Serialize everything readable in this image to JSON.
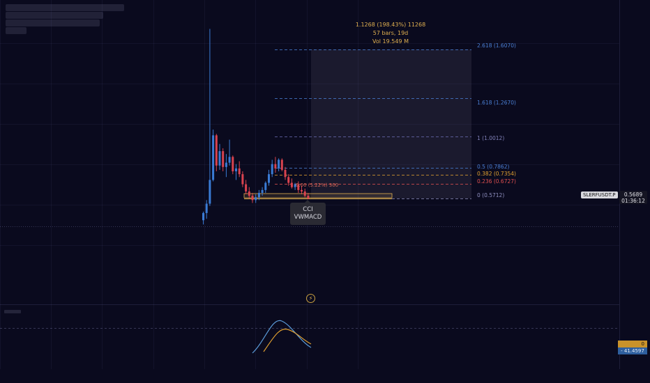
{
  "chart_data": {
    "type": "candlestick",
    "symbol": "SLERFUSDT.P",
    "last_price": "0.5689",
    "countdown": "01:36:12",
    "candles": [
      {
        "o": 0.42,
        "h": 0.48,
        "l": 0.39,
        "c": 0.47
      },
      {
        "o": 0.47,
        "h": 0.56,
        "l": 0.43,
        "c": 0.535
      },
      {
        "o": 0.535,
        "h": 1.75,
        "l": 0.52,
        "c": 0.7
      },
      {
        "o": 0.7,
        "h": 1.05,
        "l": 0.69,
        "c": 1.01
      },
      {
        "o": 1.01,
        "h": 1.02,
        "l": 0.76,
        "c": 0.8
      },
      {
        "o": 0.8,
        "h": 0.95,
        "l": 0.77,
        "c": 0.9
      },
      {
        "o": 0.9,
        "h": 0.92,
        "l": 0.76,
        "c": 0.79
      },
      {
        "o": 0.79,
        "h": 0.88,
        "l": 0.72,
        "c": 0.82
      },
      {
        "o": 0.82,
        "h": 0.98,
        "l": 0.8,
        "c": 0.86
      },
      {
        "o": 0.86,
        "h": 0.87,
        "l": 0.74,
        "c": 0.76
      },
      {
        "o": 0.76,
        "h": 0.81,
        "l": 0.7,
        "c": 0.78
      },
      {
        "o": 0.78,
        "h": 0.83,
        "l": 0.72,
        "c": 0.74
      },
      {
        "o": 0.74,
        "h": 0.76,
        "l": 0.65,
        "c": 0.67
      },
      {
        "o": 0.67,
        "h": 0.7,
        "l": 0.6,
        "c": 0.62
      },
      {
        "o": 0.62,
        "h": 0.65,
        "l": 0.57,
        "c": 0.59
      },
      {
        "o": 0.59,
        "h": 0.61,
        "l": 0.54,
        "c": 0.56
      },
      {
        "o": 0.56,
        "h": 0.6,
        "l": 0.54,
        "c": 0.58
      },
      {
        "o": 0.58,
        "h": 0.63,
        "l": 0.56,
        "c": 0.61
      },
      {
        "o": 0.61,
        "h": 0.65,
        "l": 0.59,
        "c": 0.63
      },
      {
        "o": 0.63,
        "h": 0.69,
        "l": 0.61,
        "c": 0.68
      },
      {
        "o": 0.68,
        "h": 0.77,
        "l": 0.66,
        "c": 0.74
      },
      {
        "o": 0.74,
        "h": 0.84,
        "l": 0.72,
        "c": 0.81
      },
      {
        "o": 0.81,
        "h": 0.86,
        "l": 0.75,
        "c": 0.78
      },
      {
        "o": 0.78,
        "h": 0.85,
        "l": 0.76,
        "c": 0.84
      },
      {
        "o": 0.84,
        "h": 0.85,
        "l": 0.76,
        "c": 0.77
      },
      {
        "o": 0.77,
        "h": 0.79,
        "l": 0.7,
        "c": 0.72
      },
      {
        "o": 0.72,
        "h": 0.74,
        "l": 0.66,
        "c": 0.68
      },
      {
        "o": 0.68,
        "h": 0.71,
        "l": 0.64,
        "c": 0.65
      },
      {
        "o": 0.65,
        "h": 0.68,
        "l": 0.63,
        "c": 0.67
      },
      {
        "o": 0.67,
        "h": 0.69,
        "l": 0.61,
        "c": 0.63
      },
      {
        "o": 0.63,
        "h": 0.66,
        "l": 0.6,
        "c": 0.62
      },
      {
        "o": 0.62,
        "h": 0.64,
        "l": 0.58,
        "c": 0.59
      },
      {
        "o": 0.59,
        "h": 0.61,
        "l": 0.565,
        "c": 0.57
      }
    ],
    "fib_levels": [
      {
        "ratio": "2.618",
        "price": "1.6070",
        "value": 1.607,
        "color": "#4a7fd4",
        "label": "2.618 (1.6070)"
      },
      {
        "ratio": "1.618",
        "price": "1.2670",
        "value": 1.267,
        "color": "#4a7fd4",
        "label": "1.618 (1.2670)"
      },
      {
        "ratio": "1",
        "price": "1.0012",
        "value": 1.0012,
        "color": "#6a6ab0",
        "label": "1 (1.0012)"
      },
      {
        "ratio": "0.5",
        "price": "0.7862",
        "value": 0.7862,
        "color": "#4a7fd4",
        "label": "0.5 (0.7862)"
      },
      {
        "ratio": "0.382",
        "price": "0.7354",
        "value": 0.7354,
        "color": "#e0a030",
        "label": "0.382 (0.7354)"
      },
      {
        "ratio": "0.236",
        "price": "0.6727",
        "value": 0.6727,
        "color": "#e05050",
        "label": "0.236 (0.6727)"
      },
      {
        "ratio": "0",
        "price": "0.5712",
        "value": 0.5712,
        "color": "#8a8ab8",
        "label": "0 (0.5712)"
      }
    ],
    "measure": {
      "line1": "1.1268 (198.43%) 11268",
      "line2": "57 bars, 19d",
      "line3": "Vol 19.549 M",
      "short_label": "0.00 (5.22%) 300"
    },
    "indicator_values": [
      "0",
      "- 41.4597"
    ],
    "tooltip_lines": [
      "CCI",
      "VWMACD"
    ],
    "colors": {
      "background": "#0a0a1e",
      "up": "#3a7bd5",
      "down": "#d9434f",
      "accent": "#e0b050"
    }
  }
}
